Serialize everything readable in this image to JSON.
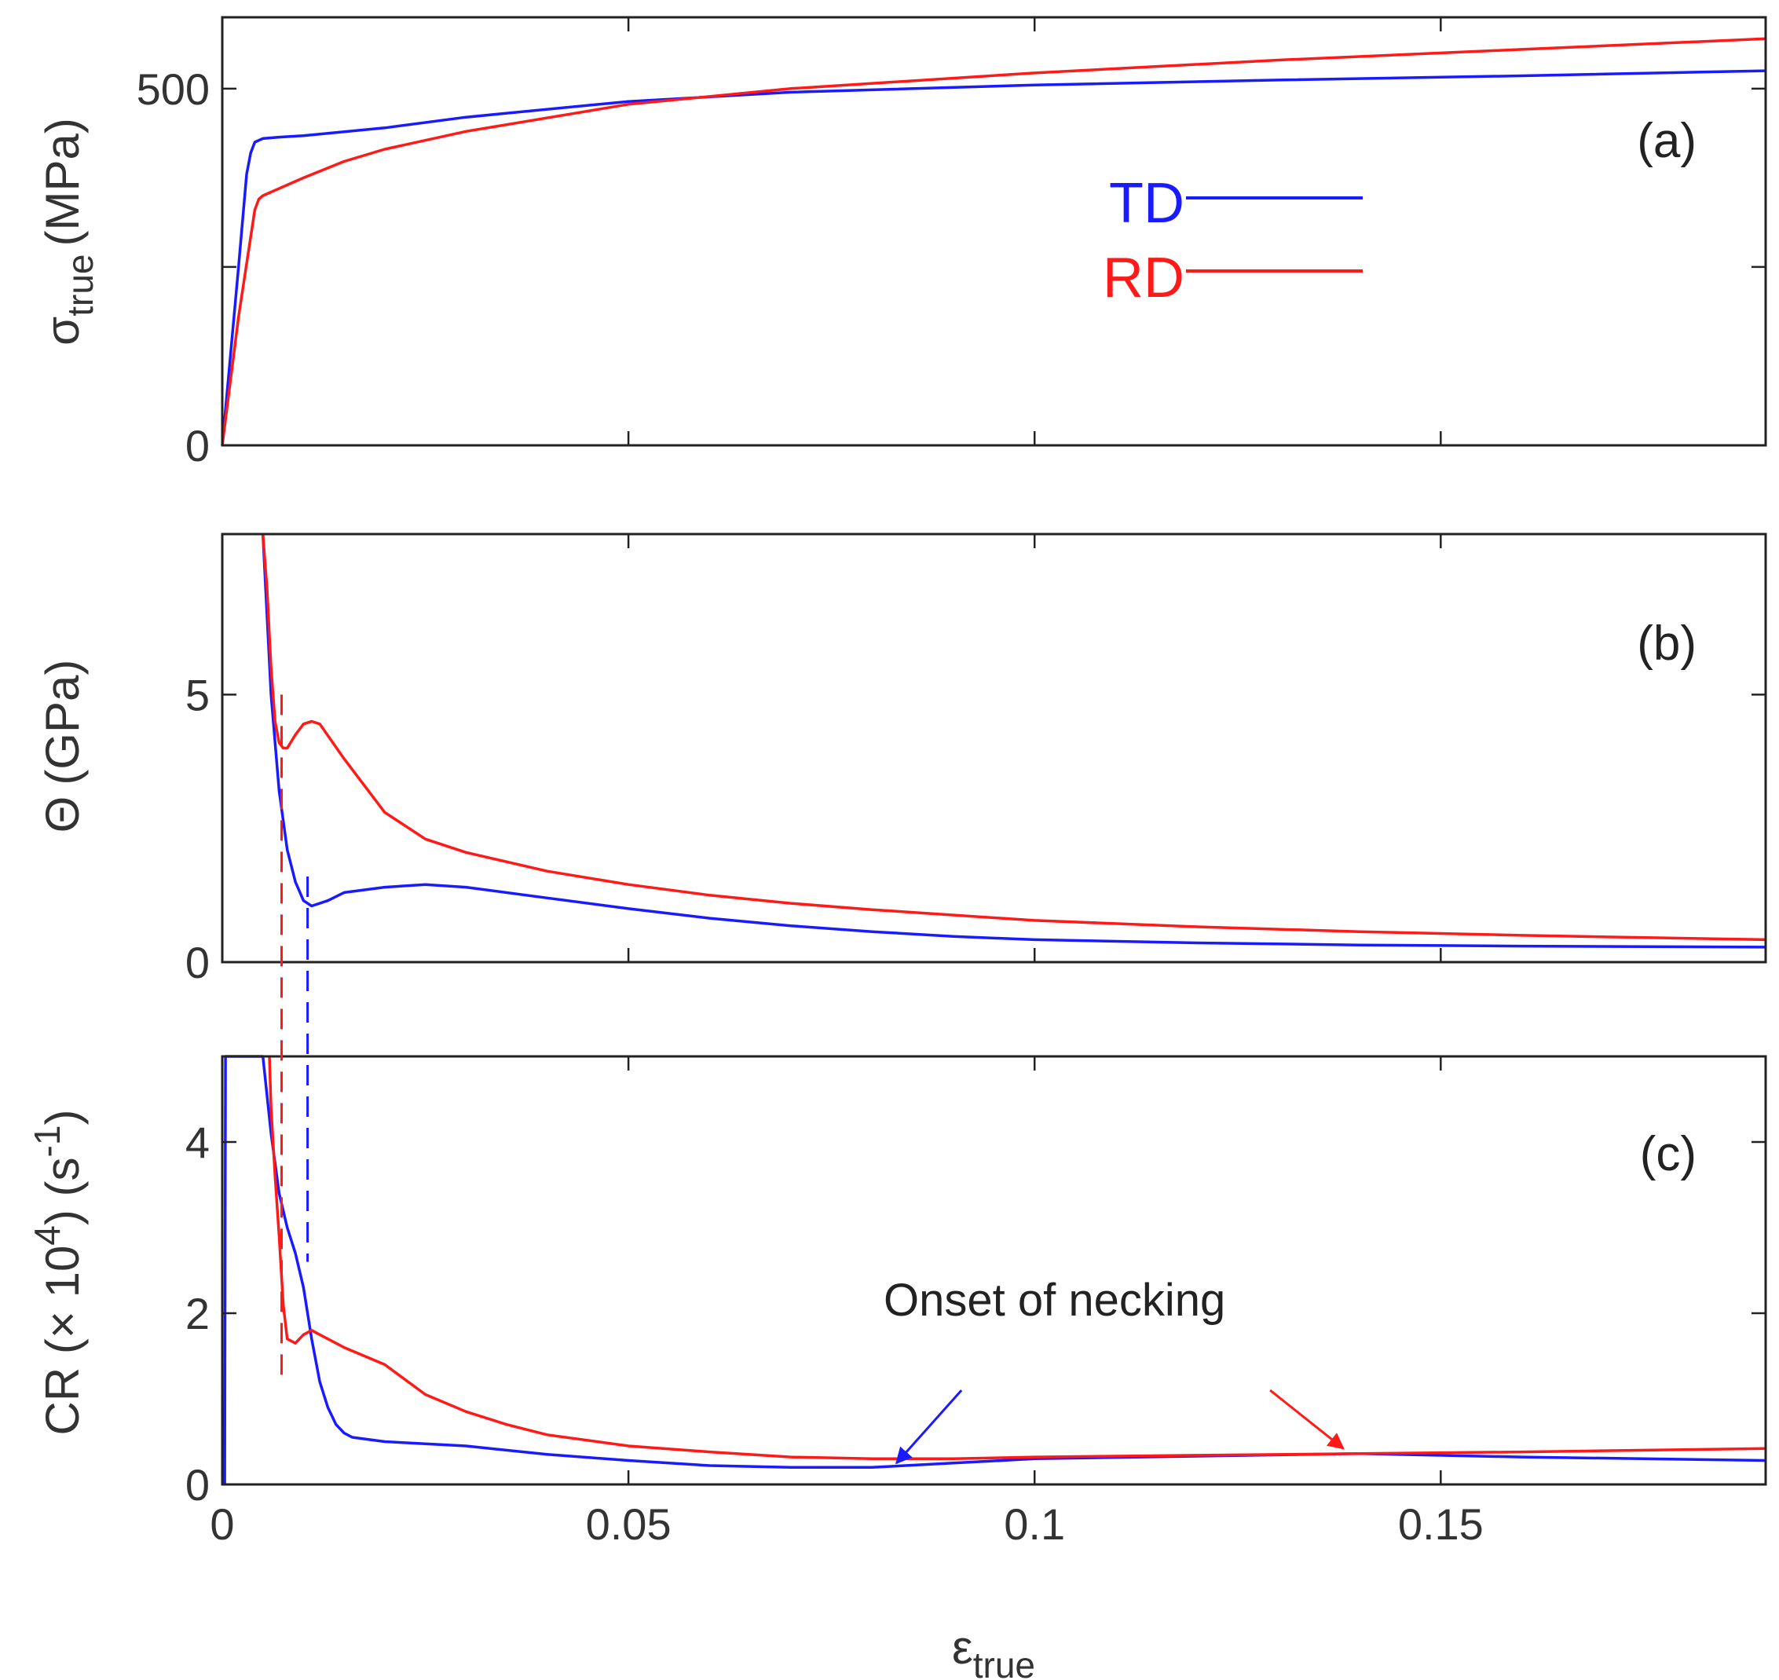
{
  "chart_data": [
    {
      "panel": "a",
      "type": "line",
      "tag": "(a)",
      "ylabel_main": "σ",
      "ylabel_sub": "true",
      "ylabel_units": "(MPa)",
      "xlim": [
        0,
        0.19
      ],
      "ylim": [
        0,
        600
      ],
      "yticks": [
        0,
        250,
        500
      ],
      "ytick_labels": [
        "0",
        "",
        "500"
      ],
      "xticks": [
        0,
        0.05,
        0.1,
        0.15
      ],
      "legend": [
        {
          "name": "TD",
          "color": "#1a1aff"
        },
        {
          "name": "RD",
          "color": "#ff1a1a"
        }
      ],
      "series": [
        {
          "name": "TD",
          "color": "#1a1aff",
          "x": [
            0,
            0.002,
            0.003,
            0.0035,
            0.004,
            0.005,
            0.007,
            0.01,
            0.02,
            0.03,
            0.05,
            0.07,
            0.1,
            0.13,
            0.16,
            0.19
          ],
          "y": [
            0,
            250,
            380,
            410,
            425,
            430,
            432,
            434,
            445,
            460,
            482,
            495,
            505,
            512,
            518,
            525
          ]
        },
        {
          "name": "RD",
          "color": "#ff1a1a",
          "x": [
            0,
            0.002,
            0.004,
            0.0045,
            0.005,
            0.007,
            0.01,
            0.015,
            0.02,
            0.03,
            0.05,
            0.07,
            0.1,
            0.13,
            0.16,
            0.19
          ],
          "y": [
            0,
            180,
            330,
            345,
            350,
            360,
            375,
            398,
            415,
            440,
            478,
            500,
            522,
            540,
            555,
            570
          ]
        }
      ]
    },
    {
      "panel": "b",
      "type": "line",
      "tag": "(b)",
      "ylabel_main": "Θ",
      "ylabel_units": "(GPa)",
      "xlim": [
        0,
        0.19
      ],
      "ylim": [
        0,
        8
      ],
      "yticks": [
        0,
        5
      ],
      "ytick_labels": [
        "0",
        "5"
      ],
      "xticks": [
        0,
        0.05,
        0.1,
        0.15
      ],
      "series": [
        {
          "name": "TD",
          "color": "#1a1aff",
          "x": [
            0.005,
            0.0055,
            0.006,
            0.007,
            0.008,
            0.009,
            0.01,
            0.011,
            0.013,
            0.015,
            0.02,
            0.025,
            0.03,
            0.04,
            0.05,
            0.06,
            0.07,
            0.08,
            0.09,
            0.1,
            0.12,
            0.14,
            0.16,
            0.19
          ],
          "y": [
            8,
            6.5,
            5.0,
            3.2,
            2.1,
            1.5,
            1.15,
            1.05,
            1.15,
            1.3,
            1.4,
            1.45,
            1.4,
            1.2,
            1.0,
            0.82,
            0.68,
            0.57,
            0.48,
            0.42,
            0.36,
            0.32,
            0.3,
            0.28
          ]
        },
        {
          "name": "RD",
          "color": "#ff1a1a",
          "x": [
            0.005,
            0.0055,
            0.006,
            0.0065,
            0.007,
            0.0075,
            0.008,
            0.009,
            0.01,
            0.011,
            0.012,
            0.015,
            0.02,
            0.025,
            0.03,
            0.04,
            0.05,
            0.06,
            0.07,
            0.08,
            0.1,
            0.12,
            0.14,
            0.16,
            0.19
          ],
          "y": [
            8,
            7.0,
            5.5,
            4.5,
            4.1,
            4.0,
            4.0,
            4.25,
            4.45,
            4.5,
            4.45,
            3.8,
            2.8,
            2.3,
            2.05,
            1.7,
            1.45,
            1.25,
            1.1,
            0.98,
            0.78,
            0.66,
            0.57,
            0.5,
            0.42
          ]
        }
      ],
      "markers": [
        {
          "name": "RD",
          "color": "#ff1a1a",
          "x": 0.0073,
          "dashed": true
        },
        {
          "name": "TD",
          "color": "#1a1aff",
          "x": 0.0105,
          "dashed": true
        }
      ]
    },
    {
      "panel": "c",
      "type": "line",
      "tag": "(c)",
      "ylabel_main": "CR (× 10",
      "ylabel_sup": "4",
      "ylabel_units": ") (s",
      "ylabel_sup2": "-1",
      "ylabel_end": ")",
      "xlabel_main": "ε",
      "xlabel_sub": "true",
      "xlim": [
        0,
        0.19
      ],
      "ylim": [
        0,
        5
      ],
      "yticks": [
        0,
        2,
        4
      ],
      "ytick_labels": [
        "0",
        "2",
        "4"
      ],
      "xticks": [
        0,
        0.05,
        0.1,
        0.15
      ],
      "xtick_labels": [
        "0",
        "0.05",
        "0.1",
        "0.15"
      ],
      "series": [
        {
          "name": "TD",
          "color": "#1a1aff",
          "x": [
            0.0003,
            0.0004,
            0.005,
            0.006,
            0.007,
            0.008,
            0.009,
            0.01,
            0.011,
            0.012,
            0.013,
            0.014,
            0.015,
            0.016,
            0.02,
            0.03,
            0.04,
            0.05,
            0.06,
            0.07,
            0.08,
            0.09,
            0.1,
            0.12,
            0.14,
            0.16,
            0.19
          ],
          "y": [
            0,
            5,
            5,
            4.1,
            3.4,
            3.0,
            2.7,
            2.3,
            1.7,
            1.2,
            0.9,
            0.7,
            0.6,
            0.55,
            0.5,
            0.45,
            0.35,
            0.28,
            0.22,
            0.2,
            0.2,
            0.25,
            0.3,
            0.33,
            0.36,
            0.32,
            0.28
          ]
        },
        {
          "name": "RD",
          "color": "#ff1a1a",
          "x": [
            0.0058,
            0.006,
            0.0065,
            0.007,
            0.0075,
            0.008,
            0.009,
            0.01,
            0.011,
            0.012,
            0.015,
            0.02,
            0.025,
            0.03,
            0.035,
            0.04,
            0.05,
            0.06,
            0.07,
            0.08,
            0.09,
            0.1,
            0.12,
            0.14,
            0.16,
            0.19
          ],
          "y": [
            5,
            4.4,
            3.6,
            2.9,
            2.1,
            1.7,
            1.65,
            1.75,
            1.8,
            1.75,
            1.6,
            1.4,
            1.05,
            0.85,
            0.7,
            0.58,
            0.45,
            0.38,
            0.32,
            0.3,
            0.3,
            0.32,
            0.34,
            0.36,
            0.38,
            0.42
          ]
        }
      ],
      "annotation": {
        "text": "Onset of necking",
        "arrows": [
          {
            "color": "#1a1aff",
            "from": [
              0.091,
              1.1
            ],
            "to": [
              0.083,
              0.25
            ]
          },
          {
            "color": "#ff1a1a",
            "from": [
              0.129,
              1.1
            ],
            "to": [
              0.138,
              0.42
            ]
          }
        ]
      },
      "markers": [
        {
          "name": "RD",
          "color": "#ff1a1a",
          "x": 0.0073,
          "dashed": true
        },
        {
          "name": "TD",
          "color": "#1a1aff",
          "x": 0.0105,
          "dashed": true
        }
      ]
    }
  ]
}
